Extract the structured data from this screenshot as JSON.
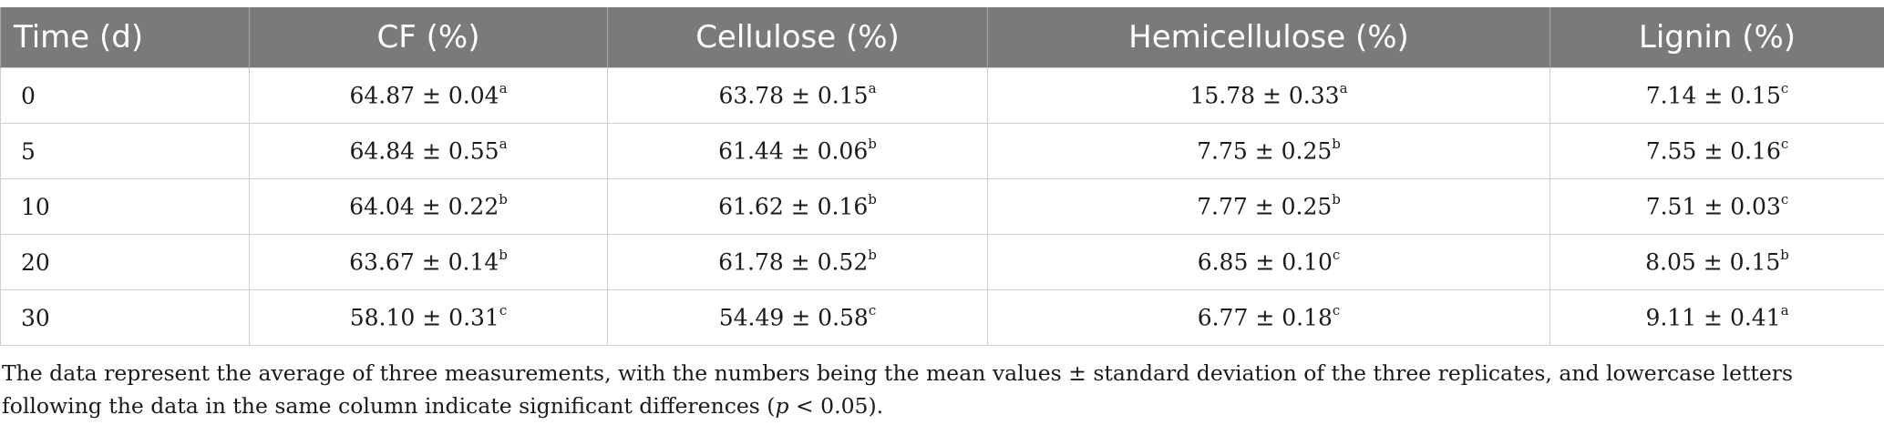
{
  "table": {
    "headers": [
      "Time (d)",
      "CF (%)",
      "Cellulose (%)",
      "Hemicellulose (%)",
      "Lignin (%)"
    ],
    "rows": [
      {
        "time": "0",
        "cells": [
          {
            "value": "64.87 ± 0.04",
            "sup": "a"
          },
          {
            "value": "63.78 ± 0.15",
            "sup": "a"
          },
          {
            "value": "15.78 ± 0.33",
            "sup": "a"
          },
          {
            "value": "7.14 ± 0.15",
            "sup": "c"
          }
        ]
      },
      {
        "time": "5",
        "cells": [
          {
            "value": "64.84 ± 0.55",
            "sup": "a"
          },
          {
            "value": "61.44 ± 0.06",
            "sup": "b"
          },
          {
            "value": "7.75 ± 0.25",
            "sup": "b"
          },
          {
            "value": "7.55 ± 0.16",
            "sup": "c"
          }
        ]
      },
      {
        "time": "10",
        "cells": [
          {
            "value": "64.04 ± 0.22",
            "sup": "b"
          },
          {
            "value": "61.62 ± 0.16",
            "sup": "b"
          },
          {
            "value": "7.77 ± 0.25",
            "sup": "b"
          },
          {
            "value": "7.51 ± 0.03",
            "sup": "c"
          }
        ]
      },
      {
        "time": "20",
        "cells": [
          {
            "value": "63.67 ± 0.14",
            "sup": "b"
          },
          {
            "value": "61.78 ± 0.52",
            "sup": "b"
          },
          {
            "value": "6.85 ± 0.10",
            "sup": "c"
          },
          {
            "value": "8.05 ± 0.15",
            "sup": "b"
          }
        ]
      },
      {
        "time": "30",
        "cells": [
          {
            "value": "58.10 ± 0.31",
            "sup": "c"
          },
          {
            "value": "54.49 ± 0.58",
            "sup": "c"
          },
          {
            "value": "6.77 ± 0.18",
            "sup": "c"
          },
          {
            "value": "9.11 ± 0.41",
            "sup": "a"
          }
        ]
      }
    ]
  },
  "footnote": {
    "before": "The data represent the average of three measurements, with the numbers being the mean values ± standard deviation of the three replicates, and lowercase letters following the data in the same column indicate significant differences (",
    "italic": "p",
    "after": " < 0.05)."
  }
}
